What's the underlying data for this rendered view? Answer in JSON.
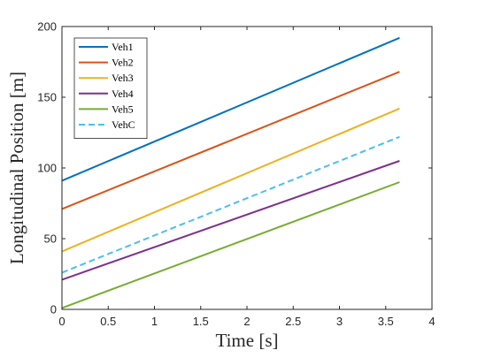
{
  "chart_data": {
    "type": "line",
    "title": "",
    "xlabel": "Time [s]",
    "ylabel": "Longitudinal Position [m]",
    "xlim": [
      0,
      4
    ],
    "ylim": [
      0,
      200
    ],
    "xticks": [
      0,
      0.5,
      1,
      1.5,
      2,
      2.5,
      3,
      3.5,
      4
    ],
    "xtick_labels": [
      "0",
      "0.5",
      "1",
      "1.5",
      "2",
      "2.5",
      "3",
      "3.5",
      "4"
    ],
    "yticks": [
      0,
      50,
      100,
      150,
      200
    ],
    "ytick_labels": [
      "0",
      "50",
      "100",
      "150",
      "200"
    ],
    "grid": false,
    "legend_position": "top-left",
    "series": [
      {
        "name": "Veh1",
        "color": "#0072BD",
        "dash": "solid",
        "x": [
          0,
          3.65
        ],
        "y": [
          91,
          192
        ]
      },
      {
        "name": "Veh2",
        "color": "#D95319",
        "dash": "solid",
        "x": [
          0,
          3.65
        ],
        "y": [
          71,
          168
        ]
      },
      {
        "name": "Veh3",
        "color": "#EDB120",
        "dash": "solid",
        "x": [
          0,
          3.65
        ],
        "y": [
          41,
          142
        ]
      },
      {
        "name": "Veh4",
        "color": "#7E2F8E",
        "dash": "solid",
        "x": [
          0,
          3.65
        ],
        "y": [
          21,
          105
        ]
      },
      {
        "name": "Veh5",
        "color": "#77AC30",
        "dash": "solid",
        "x": [
          0,
          3.65
        ],
        "y": [
          1,
          90
        ]
      },
      {
        "name": "VehC",
        "color": "#4DBEEE",
        "dash": "dashed",
        "x": [
          0,
          3.65
        ],
        "y": [
          26,
          122
        ]
      }
    ]
  }
}
